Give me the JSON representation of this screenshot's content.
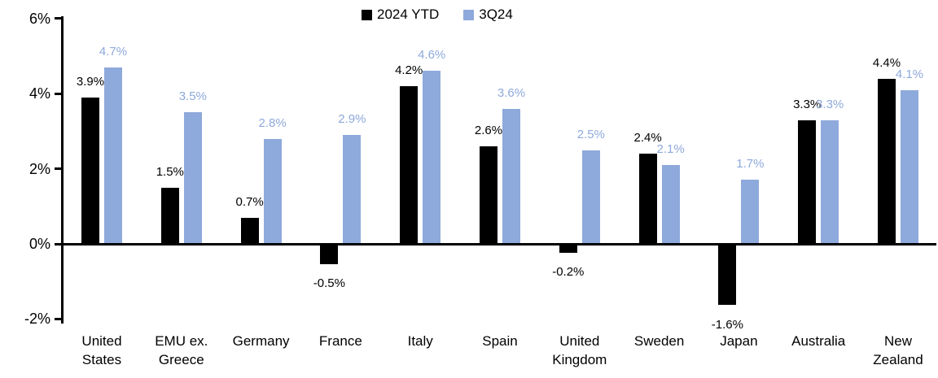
{
  "chart_data": {
    "type": "bar",
    "title": "",
    "categories": [
      "United\nStates",
      "EMU ex.\nGreece",
      "Germany",
      "France",
      "Italy",
      "Spain",
      "United\nKingdom",
      "Sweden",
      "Japan",
      "Australia",
      "New\nZealand"
    ],
    "series": [
      {
        "name": "2024 YTD",
        "color": "#000000",
        "values": [
          3.9,
          1.5,
          0.7,
          -0.5,
          4.2,
          2.6,
          -0.2,
          2.4,
          -1.6,
          3.3,
          4.4
        ]
      },
      {
        "name": "3Q24",
        "color": "#8EA9DB",
        "values": [
          4.7,
          3.5,
          2.8,
          2.9,
          4.6,
          3.6,
          2.5,
          2.1,
          1.7,
          3.3,
          4.1
        ]
      }
    ],
    "data_labels": [
      [
        "3.9%",
        "1.5%",
        "0.7%",
        "-0.5%",
        "4.2%",
        "2.6%",
        "-0.2%",
        "2.4%",
        "-1.6%",
        "3.3%",
        "4.4%"
      ],
      [
        "4.7%",
        "3.5%",
        "2.8%",
        "2.9%",
        "4.6%",
        "3.6%",
        "2.5%",
        "2.1%",
        "1.7%",
        "3.3%",
        "4.1%"
      ]
    ],
    "xlabel": "",
    "ylabel": "",
    "ylim": [
      -2,
      6
    ],
    "yticks": [
      {
        "label": "6%",
        "value": 6
      },
      {
        "label": "4%",
        "value": 4
      },
      {
        "label": "2%",
        "value": 2
      },
      {
        "label": "0%",
        "value": 0
      },
      {
        "label": "-2%",
        "value": -2
      }
    ],
    "grid": false,
    "legend_position": "top-center",
    "colors": {
      "series_2024_ytd": "#000000",
      "series_3q24": "#8EA9DB",
      "axis": "#000000",
      "background": "#FFFFFF"
    }
  }
}
